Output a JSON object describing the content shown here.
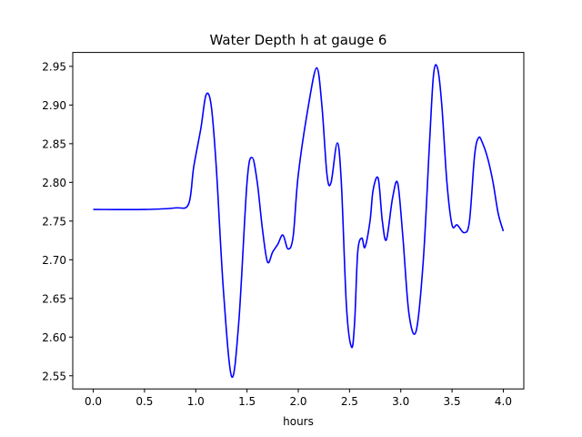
{
  "chart_data": {
    "type": "line",
    "title": "Water Depth h at gauge 6",
    "xlabel": "hours",
    "ylabel": "",
    "xlim": [
      -0.2,
      4.2
    ],
    "ylim": [
      2.533,
      2.968
    ],
    "xticks": [
      0.0,
      0.5,
      1.0,
      1.5,
      2.0,
      2.5,
      3.0,
      3.5,
      4.0
    ],
    "xtick_labels": [
      "0.0",
      "0.5",
      "1.0",
      "1.5",
      "2.0",
      "2.5",
      "3.0",
      "3.5",
      "4.0"
    ],
    "yticks": [
      2.55,
      2.6,
      2.65,
      2.7,
      2.75,
      2.8,
      2.85,
      2.9,
      2.95
    ],
    "ytick_labels": [
      "2.55",
      "2.60",
      "2.65",
      "2.70",
      "2.75",
      "2.80",
      "2.85",
      "2.90",
      "2.95"
    ],
    "grid": false,
    "series": [
      {
        "color": "#0000ff",
        "x": [
          0.0,
          0.5,
          0.8,
          0.93,
          0.98,
          1.05,
          1.1,
          1.15,
          1.2,
          1.27,
          1.35,
          1.42,
          1.5,
          1.55,
          1.6,
          1.65,
          1.7,
          1.75,
          1.8,
          1.85,
          1.9,
          1.95,
          2.0,
          2.1,
          2.18,
          2.23,
          2.28,
          2.32,
          2.38,
          2.42,
          2.47,
          2.52,
          2.55,
          2.58,
          2.62,
          2.65,
          2.7,
          2.73,
          2.78,
          2.82,
          2.86,
          2.92,
          2.97,
          3.02,
          3.08,
          3.15,
          3.22,
          3.28,
          3.32,
          3.36,
          3.4,
          3.45,
          3.5,
          3.55,
          3.62,
          3.67,
          3.72,
          3.76,
          3.8,
          3.85,
          3.9,
          3.95,
          4.0
        ],
        "y": [
          2.765,
          2.765,
          2.767,
          2.772,
          2.82,
          2.87,
          2.913,
          2.9,
          2.82,
          2.66,
          2.549,
          2.62,
          2.8,
          2.832,
          2.8,
          2.74,
          2.697,
          2.71,
          2.72,
          2.732,
          2.714,
          2.73,
          2.81,
          2.9,
          2.948,
          2.9,
          2.81,
          2.8,
          2.851,
          2.8,
          2.64,
          2.587,
          2.62,
          2.71,
          2.728,
          2.716,
          2.75,
          2.79,
          2.805,
          2.75,
          2.726,
          2.78,
          2.799,
          2.73,
          2.63,
          2.608,
          2.7,
          2.85,
          2.94,
          2.947,
          2.9,
          2.8,
          2.745,
          2.745,
          2.735,
          2.75,
          2.835,
          2.858,
          2.85,
          2.83,
          2.8,
          2.76,
          2.737
        ]
      }
    ]
  }
}
